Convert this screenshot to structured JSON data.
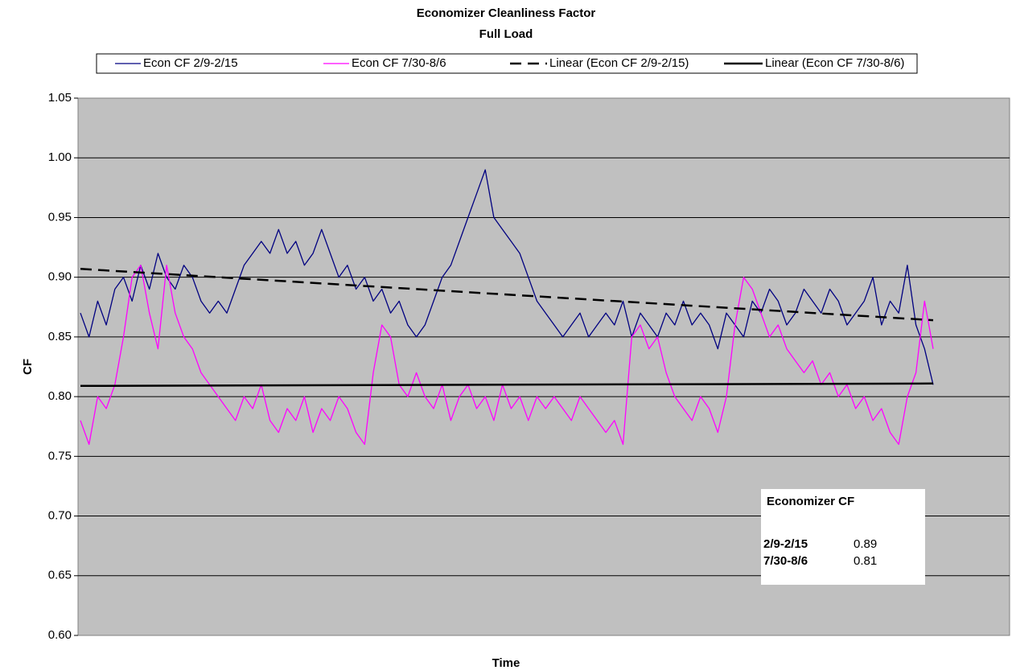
{
  "chart_data": {
    "type": "line",
    "title": "Economizer Cleanliness Factor",
    "subtitle": "Full Load",
    "x_label": "Time",
    "y_label": "CF",
    "ylim": [
      0.6,
      1.05
    ],
    "yticks": [
      {
        "value": 0.6,
        "label": "0.60"
      },
      0.65,
      {
        "value": 0.7,
        "label": "0.70"
      },
      0.75,
      {
        "value": 0.8,
        "label": "0.80"
      },
      0.85,
      {
        "value": 0.9,
        "label": "0.90"
      },
      0.95,
      {
        "value": 1.0,
        "label": "1.00"
      },
      1.05
    ],
    "grid": true,
    "legend": "top",
    "series": [
      {
        "name": "Econ CF 2/9-2/15",
        "color": "#000080",
        "values": [
          0.87,
          0.85,
          0.88,
          0.86,
          0.89,
          0.9,
          0.88,
          0.91,
          0.89,
          0.92,
          0.9,
          0.89,
          0.91,
          0.9,
          0.88,
          0.87,
          0.88,
          0.87,
          0.89,
          0.91,
          0.92,
          0.93,
          0.92,
          0.94,
          0.92,
          0.93,
          0.91,
          0.92,
          0.94,
          0.92,
          0.9,
          0.91,
          0.89,
          0.9,
          0.88,
          0.89,
          0.87,
          0.88,
          0.86,
          0.85,
          0.86,
          0.88,
          0.9,
          0.91,
          0.93,
          0.95,
          0.97,
          0.99,
          0.95,
          0.94,
          0.93,
          0.92,
          0.9,
          0.88,
          0.87,
          0.86,
          0.85,
          0.86,
          0.87,
          0.85,
          0.86,
          0.87,
          0.86,
          0.88,
          0.85,
          0.87,
          0.86,
          0.85,
          0.87,
          0.86,
          0.88,
          0.86,
          0.87,
          0.86,
          0.84,
          0.87,
          0.86,
          0.85,
          0.88,
          0.87,
          0.89,
          0.88,
          0.86,
          0.87,
          0.89,
          0.88,
          0.87,
          0.89,
          0.88,
          0.86,
          0.87,
          0.88,
          0.9,
          0.86,
          0.88,
          0.87,
          0.91,
          0.86,
          0.84,
          0.81
        ]
      },
      {
        "name": "Econ CF 7/30-8/6",
        "color": "#ff00ff",
        "values": [
          0.78,
          0.76,
          0.8,
          0.79,
          0.81,
          0.85,
          0.9,
          0.91,
          0.87,
          0.84,
          0.91,
          0.87,
          0.85,
          0.84,
          0.82,
          0.81,
          0.8,
          0.79,
          0.78,
          0.8,
          0.79,
          0.81,
          0.78,
          0.77,
          0.79,
          0.78,
          0.8,
          0.77,
          0.79,
          0.78,
          0.8,
          0.79,
          0.77,
          0.76,
          0.82,
          0.86,
          0.85,
          0.81,
          0.8,
          0.82,
          0.8,
          0.79,
          0.81,
          0.78,
          0.8,
          0.81,
          0.79,
          0.8,
          0.78,
          0.81,
          0.79,
          0.8,
          0.78,
          0.8,
          0.79,
          0.8,
          0.79,
          0.78,
          0.8,
          0.79,
          0.78,
          0.77,
          0.78,
          0.76,
          0.85,
          0.86,
          0.84,
          0.85,
          0.82,
          0.8,
          0.79,
          0.78,
          0.8,
          0.79,
          0.77,
          0.8,
          0.86,
          0.9,
          0.89,
          0.87,
          0.85,
          0.86,
          0.84,
          0.83,
          0.82,
          0.83,
          0.81,
          0.82,
          0.8,
          0.81,
          0.79,
          0.8,
          0.78,
          0.79,
          0.77,
          0.76,
          0.8,
          0.82,
          0.88,
          0.84
        ]
      }
    ],
    "trendlines": [
      {
        "name": "Linear (Econ CF 2/9-2/15)",
        "color": "#000000",
        "dashed": true,
        "values": [
          0.907,
          0.864
        ]
      },
      {
        "name": "Linear (Econ CF 7/30-8/6)",
        "color": "#000000",
        "dashed": false,
        "values": [
          0.809,
          0.811
        ]
      }
    ],
    "inset": {
      "title": "Economizer CF",
      "rows": [
        [
          "2/9-2/15",
          0.89
        ],
        [
          "7/30-8/6",
          0.81
        ]
      ]
    }
  }
}
